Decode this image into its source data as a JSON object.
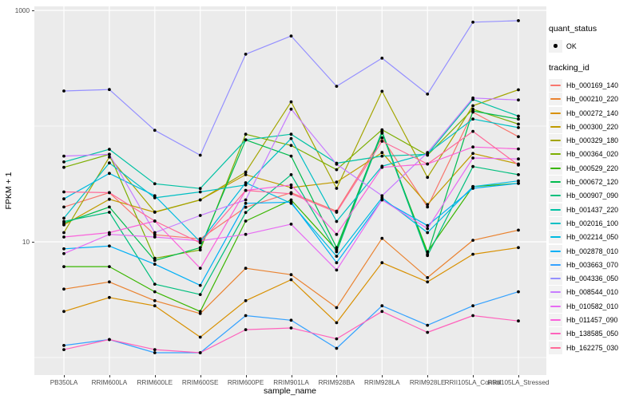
{
  "chart_data": {
    "type": "line",
    "title": "",
    "xlabel": "sample_name",
    "ylabel": "FPKM + 1",
    "y_scale": "log10",
    "y_tick_labels": [
      "1000",
      "10"
    ],
    "y_major_breaks": [
      1000,
      10
    ],
    "y_minor_breaks": [
      100,
      1
    ],
    "ylim": [
      0.7,
      1100
    ],
    "grid": true,
    "legend_position": "right",
    "point_marker": {
      "shape": "circle",
      "color": "#000000"
    },
    "categories": [
      "PB350LA",
      "RRIM600LA",
      "RRIM600LE",
      "RRIM600SE",
      "RRIM600PE",
      "RRIM901LA",
      "RRIM928BA",
      "RRIM928LA",
      "RRIM928LE",
      "RRII105LA_Control",
      "RRII105LA_Stressed"
    ],
    "series": [
      {
        "name": "Hb_000169_140",
        "color": "#F8766D",
        "values": [
          20,
          26.6,
          11.5,
          10.6,
          19.9,
          26.6,
          18.4,
          79,
          20,
          132,
          81
        ]
      },
      {
        "name": "Hb_000210_220",
        "color": "#EA8331",
        "values": [
          3.9,
          4.5,
          3.1,
          2.4,
          5.9,
          5.2,
          2.7,
          10.7,
          4.9,
          10.3,
          12.6
        ]
      },
      {
        "name": "Hb_000272_140",
        "color": "#D89000",
        "values": [
          2.5,
          3.3,
          2.8,
          1.5,
          3.1,
          4.7,
          2.0,
          6.6,
          4.5,
          7.8,
          8.9
        ]
      },
      {
        "name": "Hb_000300_220",
        "color": "#C09B00",
        "values": [
          14,
          23.3,
          18,
          23,
          38,
          29.4,
          32.8,
          59,
          21,
          58,
          47
        ]
      },
      {
        "name": "Hb_000329_180",
        "color": "#A3A500",
        "values": [
          12,
          54,
          18.1,
          23,
          40,
          162,
          29,
          200,
          36,
          150,
          206
        ]
      },
      {
        "name": "Hb_000364_020",
        "color": "#7CAE00",
        "values": [
          44,
          57,
          7.2,
          8.5,
          85,
          68,
          42,
          93,
          56,
          140,
          104
        ]
      },
      {
        "name": "Hb_000529_220",
        "color": "#39B600",
        "values": [
          6.1,
          6.1,
          3.7,
          2.5,
          15.1,
          23,
          8.5,
          87,
          8.2,
          30,
          32
        ]
      },
      {
        "name": "Hb_000672_120",
        "color": "#00BB4E",
        "values": [
          14.5,
          20,
          6.9,
          8.9,
          76,
          55,
          8.9,
          90,
          7.8,
          135,
          115
        ]
      },
      {
        "name": "Hb_000907_090",
        "color": "#00BF7D",
        "values": [
          15,
          18,
          4.3,
          3.5,
          17.9,
          38,
          8.2,
          88,
          7.6,
          44.7,
          38
        ]
      },
      {
        "name": "Hb_001437_220",
        "color": "#00C1A3",
        "values": [
          49,
          63,
          31.7,
          28.9,
          76,
          85,
          47.8,
          55,
          57,
          170,
          122
        ]
      },
      {
        "name": "Hb_002016_100",
        "color": "#00BFC4",
        "values": [
          16,
          48,
          24,
          27,
          31,
          78,
          15,
          45,
          58,
          115,
          97
        ]
      },
      {
        "name": "Hb_002214_050",
        "color": "#00BAE0",
        "values": [
          23.5,
          39,
          25,
          10,
          32.4,
          21.5,
          7.5,
          24,
          12,
          30,
          33.6
        ]
      },
      {
        "name": "Hb_002878_010",
        "color": "#00B0F6",
        "values": [
          8.7,
          9.2,
          6.4,
          4.2,
          21.5,
          22,
          6.6,
          23,
          13.8,
          29,
          32
        ]
      },
      {
        "name": "Hb_003663_070",
        "color": "#35A2FF",
        "values": [
          1.27,
          1.43,
          1.1,
          1.1,
          2.3,
          2.1,
          1.2,
          2.8,
          1.9,
          2.8,
          3.7
        ]
      },
      {
        "name": "Hb_004336_050",
        "color": "#9590FF",
        "values": [
          201,
          207,
          92,
          56,
          418,
          601,
          221,
          386,
          189,
          790,
          815
        ]
      },
      {
        "name": "Hb_008544_010",
        "color": "#C77CFF",
        "values": [
          55,
          57,
          12,
          16.9,
          23,
          140,
          46.9,
          25,
          59,
          175,
          168
        ]
      },
      {
        "name": "Hb_010582_010",
        "color": "#E76BF3",
        "values": [
          7.9,
          11.6,
          11,
          10.2,
          11.6,
          14.2,
          5.7,
          23,
          13,
          53,
          52
        ]
      },
      {
        "name": "Hb_011457_090",
        "color": "#FA62DB",
        "values": [
          11,
          12,
          15.1,
          5.9,
          27.8,
          31,
          11.6,
          44,
          47,
          66,
          63.5
        ]
      },
      {
        "name": "Hb_138585_050",
        "color": "#FF62BC",
        "values": [
          1.17,
          1.43,
          1.17,
          1.1,
          1.74,
          1.8,
          1.45,
          2.5,
          1.65,
          2.3,
          2.07
        ]
      },
      {
        "name": "Hb_162275_030",
        "color": "#FF6A98",
        "values": [
          27,
          26.6,
          15.1,
          9.8,
          27.8,
          26,
          18,
          74,
          47,
          90,
          46
        ]
      }
    ]
  },
  "legend": {
    "quant_status_title": "quant_status",
    "quant_status_items": [
      {
        "label": "OK"
      }
    ],
    "tracking_id_title": "tracking_id"
  },
  "style_colors": {
    "panel_background": "#EBEBEB",
    "gridline": "#FFFFFF",
    "tick_text": "#4D4D4D",
    "axis_tick": "#333333",
    "legend_key_background": "#F2F2F2",
    "point": "#000000"
  }
}
